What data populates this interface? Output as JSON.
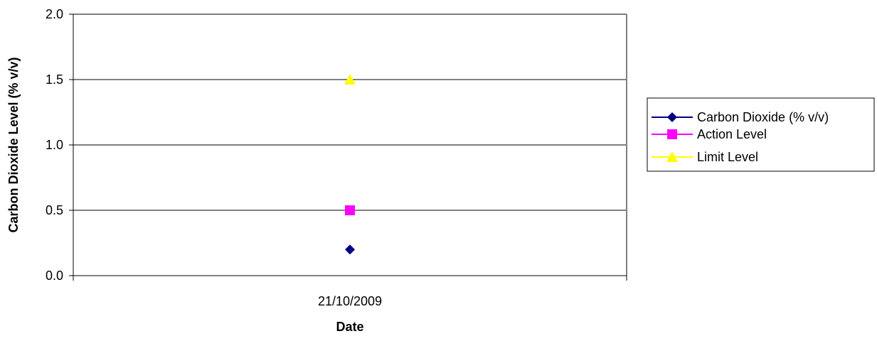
{
  "chart_data": {
    "type": "scatter",
    "x": [
      "21/10/2009"
    ],
    "xlabel": "Date",
    "ylabel": "Carbon Dioxide Level (% v/v)",
    "ylim": [
      0,
      2.0
    ],
    "yticks": [
      0.0,
      0.5,
      1.0,
      1.5,
      2.0
    ],
    "ytick_labels": [
      "0.0",
      "0.5",
      "1.0",
      "1.5",
      "2.0"
    ],
    "grid": "horizontal",
    "legend_position": "right",
    "series": [
      {
        "name": "Carbon Dioxide (% v/v)",
        "values": [
          0.2
        ],
        "color": "#000080",
        "marker": "diamond"
      },
      {
        "name": "Action Level",
        "values": [
          0.5
        ],
        "color": "#FF00FF",
        "marker": "square"
      },
      {
        "name": "Limit Level",
        "values": [
          1.5
        ],
        "color": "#FFFF00",
        "marker": "triangle"
      }
    ]
  }
}
